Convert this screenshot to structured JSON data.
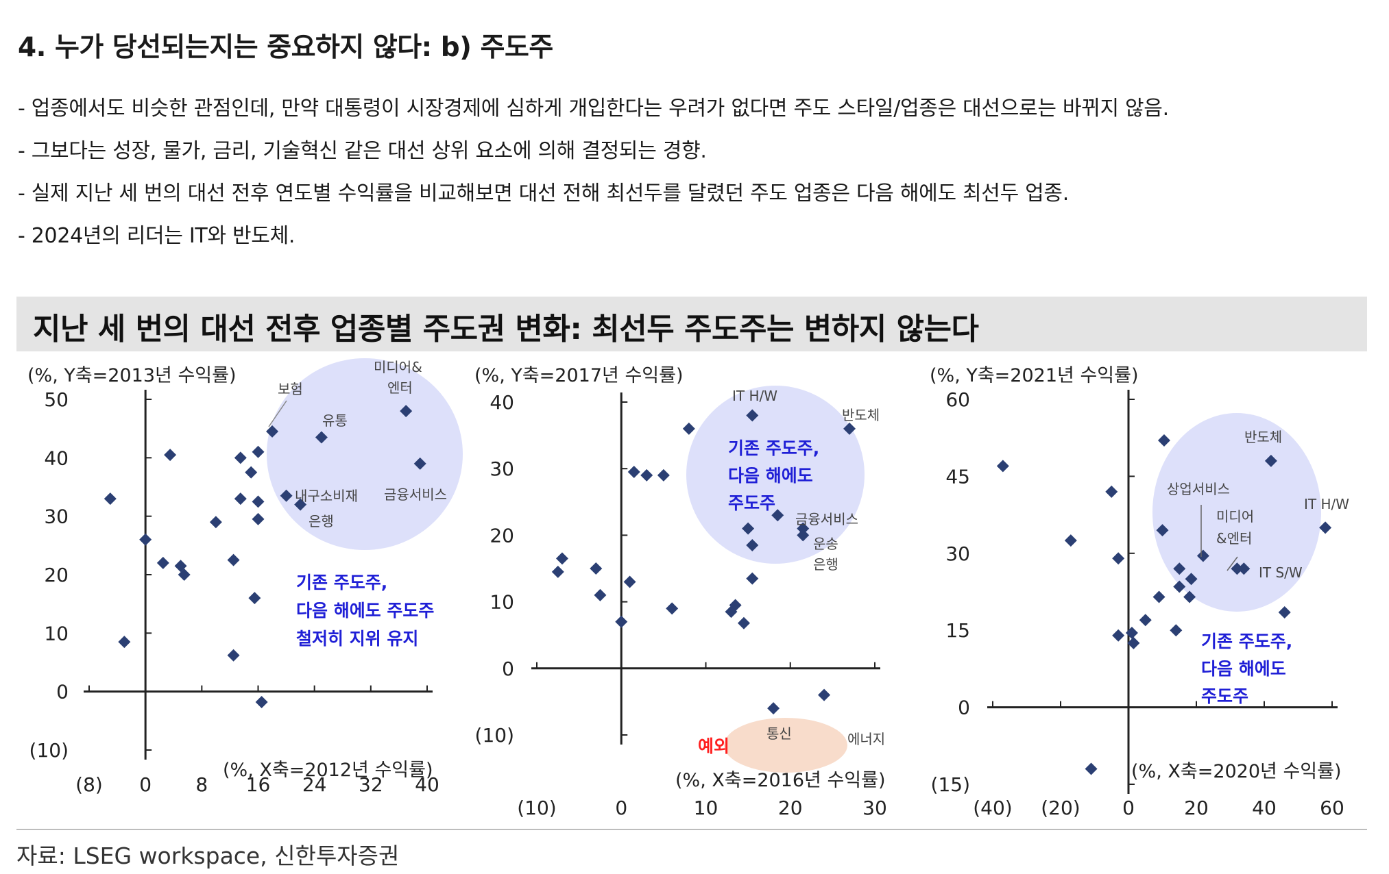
{
  "heading": "4. 누가 당선되는지는 중요하지 않다: b) 주도주",
  "bullets": [
    "- 업종에서도 비슷한 관점인데, 만약 대통령이 시장경제에 심하게 개입한다는 우려가 없다면 주도 스타일/업종은 대선으로는 바뀌지 않음.",
    "- 그보다는 성장, 물가, 금리, 기술혁신 같은 대선 상위 요소에 의해 결정되는 경향.",
    "- 실제 지난 세 번의 대선 전후 연도별 수익률을 비교해보면 대선 전해 최선두를 달렸던 주도 업종은 다음 해에도 최선두 업종.",
    "- 2024년의 리더는 IT와 반도체."
  ],
  "banner_title": "지난 세 번의 대선 전후 업종별 주도권 변화: 최선두 주도주는 변하지 않는다",
  "source": "자료: LSEG workspace, 신한투자증권",
  "colors": {
    "marker": "#2b3f73",
    "highlight": "#dde0fa",
    "exception": "#f8dccb",
    "callout": "#1f1fd6",
    "exception_label": "#ff1f1f"
  },
  "chart_data": [
    {
      "type": "scatter",
      "ylabel": "(%, Y축=2013년 수익률)",
      "xlabel": "(%, X축=2012년 수익률)",
      "xlim": [
        -8,
        40
      ],
      "ylim": [
        -10,
        50
      ],
      "xticks": [
        -8,
        0,
        8,
        16,
        24,
        32,
        40
      ],
      "yticks": [
        -10,
        0,
        10,
        20,
        30,
        40,
        50
      ],
      "xtick_labels": [
        "(8)",
        "0",
        "8",
        "16",
        "24",
        "32",
        "40"
      ],
      "ytick_labels": [
        "(10)",
        "0",
        "10",
        "20",
        "30",
        "40",
        "50"
      ],
      "points": [
        {
          "x": -5,
          "y": 33
        },
        {
          "x": -3,
          "y": 8.5
        },
        {
          "x": 0,
          "y": 26
        },
        {
          "x": 2.5,
          "y": 22
        },
        {
          "x": 3.5,
          "y": 40.5
        },
        {
          "x": 5,
          "y": 21.5
        },
        {
          "x": 5.5,
          "y": 20
        },
        {
          "x": 10,
          "y": 29
        },
        {
          "x": 12.5,
          "y": 22.5
        },
        {
          "x": 12.5,
          "y": 6.2
        },
        {
          "x": 13.5,
          "y": 40
        },
        {
          "x": 13.5,
          "y": 33
        },
        {
          "x": 15,
          "y": 37.5
        },
        {
          "x": 15.5,
          "y": 16
        },
        {
          "x": 16,
          "y": 41
        },
        {
          "x": 16,
          "y": 32.5
        },
        {
          "x": 16,
          "y": 29.5
        },
        {
          "x": 16.5,
          "y": -1.8
        },
        {
          "x": 18,
          "y": 44.5
        },
        {
          "x": 20,
          "y": 33.5
        },
        {
          "x": 22,
          "y": 32
        },
        {
          "x": 25,
          "y": 43.5
        },
        {
          "x": 37,
          "y": 48
        },
        {
          "x": 39,
          "y": 39
        }
      ],
      "labels": [
        "보험",
        "유통",
        "미디어&",
        "엔터",
        "내구소비재",
        "은행",
        "금융서비스"
      ],
      "callout": [
        "기존 주도주,",
        "다음 해에도 주도주",
        "철저히 지위 유지"
      ]
    },
    {
      "type": "scatter",
      "ylabel": "(%, Y축=2017년 수익률)",
      "xlabel": "(%, X축=2016년 수익률)",
      "xlim": [
        -10,
        30
      ],
      "ylim": [
        -10,
        40
      ],
      "xticks": [
        -10,
        0,
        10,
        20,
        30
      ],
      "yticks": [
        -10,
        0,
        10,
        20,
        30,
        40
      ],
      "xtick_labels": [
        "(10)",
        "0",
        "10",
        "20",
        "30"
      ],
      "ytick_labels": [
        "(10)",
        "0",
        "10",
        "20",
        "30",
        "40"
      ],
      "points": [
        {
          "x": -7.5,
          "y": 14.5
        },
        {
          "x": -7,
          "y": 16.5
        },
        {
          "x": -3,
          "y": 15
        },
        {
          "x": -2.5,
          "y": 11
        },
        {
          "x": 0,
          "y": 7
        },
        {
          "x": 1,
          "y": 13
        },
        {
          "x": 1.5,
          "y": 29.5
        },
        {
          "x": 3,
          "y": 29
        },
        {
          "x": 5,
          "y": 29
        },
        {
          "x": 6,
          "y": 9
        },
        {
          "x": 8,
          "y": 36
        },
        {
          "x": 13,
          "y": 8.5
        },
        {
          "x": 13.5,
          "y": 9.5
        },
        {
          "x": 14.5,
          "y": 6.8
        },
        {
          "x": 15,
          "y": 21
        },
        {
          "x": 15.5,
          "y": 18.5
        },
        {
          "x": 15.5,
          "y": 13.5
        },
        {
          "x": 15.5,
          "y": 38
        },
        {
          "x": 18.5,
          "y": 23
        },
        {
          "x": 21.5,
          "y": 21
        },
        {
          "x": 21.5,
          "y": 20
        },
        {
          "x": 27,
          "y": 36
        },
        {
          "x": 18,
          "y": -6
        },
        {
          "x": 24,
          "y": -4
        }
      ],
      "labels": [
        "IT H/W",
        "반도체",
        "금융서비스",
        "운송",
        "은행",
        "통신",
        "에너지"
      ],
      "callout": [
        "기존 주도주,",
        "다음 해에도",
        "주도주"
      ],
      "exception_label": "예외"
    },
    {
      "type": "scatter",
      "ylabel": "(%, Y축=2021년 수익률)",
      "xlabel": "(%, X축=2020년 수익률)",
      "xlim": [
        -40,
        60
      ],
      "ylim": [
        -15,
        60
      ],
      "xticks": [
        -40,
        -20,
        0,
        20,
        40,
        60
      ],
      "yticks": [
        -15,
        0,
        15,
        30,
        45,
        60
      ],
      "xtick_labels": [
        "(40)",
        "(20)",
        "0",
        "20",
        "40",
        "60"
      ],
      "ytick_labels": [
        "(15)",
        "0",
        "15",
        "30",
        "45",
        "60"
      ],
      "points": [
        {
          "x": -37,
          "y": 47
        },
        {
          "x": -17,
          "y": 32.5
        },
        {
          "x": -11,
          "y": -12
        },
        {
          "x": -5,
          "y": 42
        },
        {
          "x": -3,
          "y": 29
        },
        {
          "x": -3,
          "y": 14
        },
        {
          "x": 1,
          "y": 14.5
        },
        {
          "x": 1.5,
          "y": 12.5
        },
        {
          "x": 5,
          "y": 17
        },
        {
          "x": 9,
          "y": 21.5
        },
        {
          "x": 10,
          "y": 34.5
        },
        {
          "x": 10.5,
          "y": 52
        },
        {
          "x": 14,
          "y": 15
        },
        {
          "x": 15,
          "y": 23.5
        },
        {
          "x": 15,
          "y": 27
        },
        {
          "x": 18,
          "y": 21.5
        },
        {
          "x": 18.5,
          "y": 25
        },
        {
          "x": 22,
          "y": 29.5
        },
        {
          "x": 32,
          "y": 27
        },
        {
          "x": 34,
          "y": 27
        },
        {
          "x": 42,
          "y": 48
        },
        {
          "x": 46,
          "y": 18.5
        },
        {
          "x": 58,
          "y": 35
        }
      ],
      "labels": [
        "반도체",
        "상업서비스",
        "IT H/W",
        "미디어",
        "&엔터",
        "IT S/W"
      ],
      "callout": [
        "기존 주도주,",
        "다음 해에도",
        "주도주"
      ]
    }
  ]
}
